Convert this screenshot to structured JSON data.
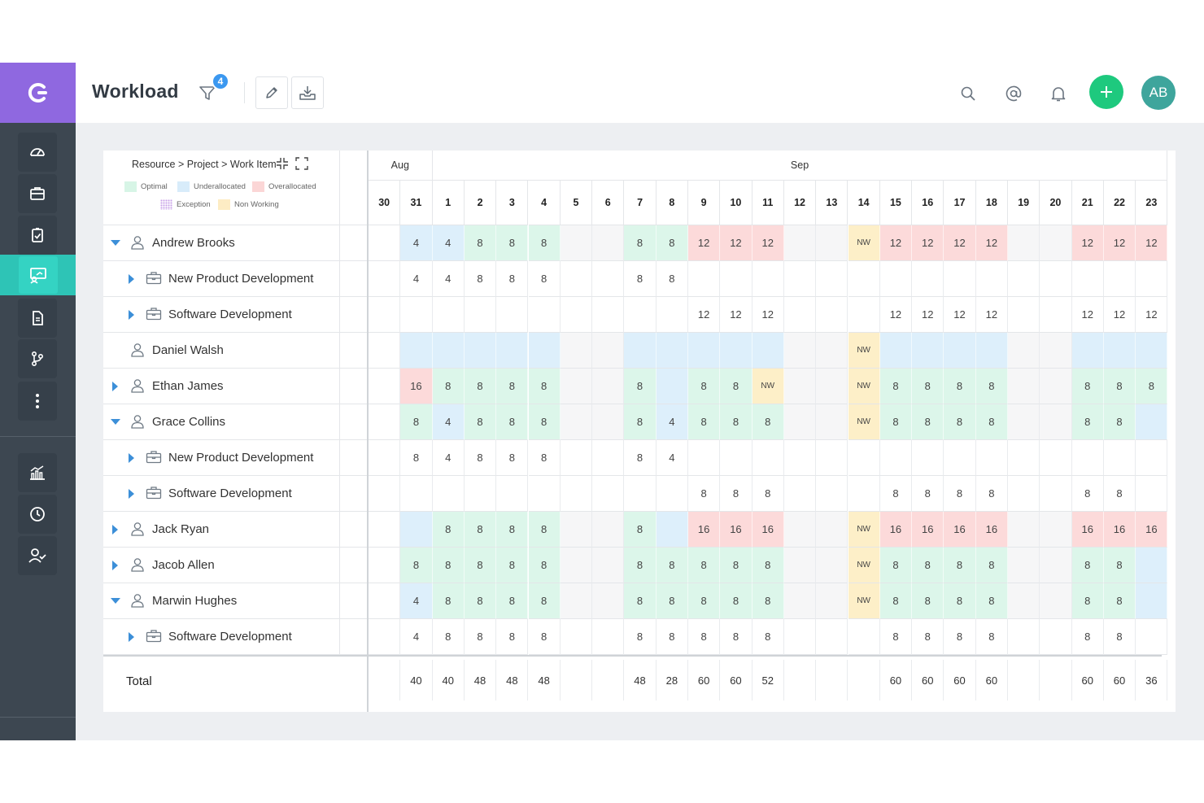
{
  "header": {
    "title": "Workload",
    "filter_count": "4",
    "avatar_initials": "AB"
  },
  "panel": {
    "breadcrumb": "Resource > Project > Work Item",
    "legend": [
      {
        "label": "Optimal",
        "color": "#d7f5e6"
      },
      {
        "label": "Underallocated",
        "color": "#d8ecfa"
      },
      {
        "label": "Overallocated",
        "color": "#fbd6d6"
      },
      {
        "label": "Exception",
        "color": "pattern"
      },
      {
        "label": "Non Working",
        "color": "#fdecc4"
      }
    ],
    "months": [
      {
        "label": "Aug",
        "start": 0,
        "span": 2
      },
      {
        "label": "Sep",
        "start": 2,
        "span": 23
      }
    ],
    "days": [
      "30",
      "31",
      "1",
      "2",
      "3",
      "4",
      "5",
      "6",
      "7",
      "8",
      "9",
      "10",
      "11",
      "12",
      "13",
      "14",
      "15",
      "16",
      "17",
      "18",
      "19",
      "20",
      "21",
      "22",
      "23"
    ],
    "total_label": "Total"
  },
  "colors": {
    "optimal": "#dcf6ea",
    "under": "#ddeffb",
    "over": "#fcdada",
    "nonworking": "#fdefc8",
    "weekend": "#f6f6f7"
  },
  "rows": [
    {
      "name": "Andrew Brooks",
      "level": 0,
      "caret": "down",
      "cells": [
        "",
        "4",
        "4",
        "8",
        "8",
        "8",
        "",
        "",
        "8",
        "8",
        "12",
        "12",
        "12",
        "",
        "",
        "NW",
        "12",
        "12",
        "12",
        "12",
        "",
        "",
        "12",
        "12",
        "12"
      ],
      "states": [
        "",
        "u",
        "u",
        "o",
        "o",
        "o",
        "w",
        "w",
        "o",
        "o",
        "x",
        "x",
        "x",
        "w",
        "w",
        "n",
        "x",
        "x",
        "x",
        "x",
        "w",
        "w",
        "x",
        "x",
        "x"
      ]
    },
    {
      "name": "New Product Development",
      "level": 1,
      "caret": "right",
      "cells": [
        "",
        "4",
        "4",
        "8",
        "8",
        "8",
        "",
        "",
        "8",
        "8",
        "",
        "",
        "",
        "",
        "",
        "",
        "",
        "",
        "",
        "",
        "",
        "",
        "",
        "",
        ""
      ],
      "states": [
        "",
        "",
        "",
        "",
        "",
        "",
        "",
        "",
        "",
        "",
        "",
        "",
        "",
        "",
        "",
        "",
        "",
        "",
        "",
        "",
        "",
        "",
        "",
        "",
        ""
      ]
    },
    {
      "name": "Software Development",
      "level": 1,
      "caret": "right",
      "cells": [
        "",
        "",
        "",
        "",
        "",
        "",
        "",
        "",
        "",
        "",
        "12",
        "12",
        "12",
        "",
        "",
        "",
        "12",
        "12",
        "12",
        "12",
        "",
        "",
        "12",
        "12",
        "12"
      ],
      "states": [
        "",
        "",
        "",
        "",
        "",
        "",
        "",
        "",
        "",
        "",
        "",
        "",
        "",
        "",
        "",
        "",
        "",
        "",
        "",
        "",
        "",
        "",
        "",
        "",
        ""
      ]
    },
    {
      "name": "Daniel Walsh",
      "level": 0,
      "caret": "none",
      "cells": [
        "",
        "",
        "",
        "",
        "",
        "",
        "",
        "",
        "",
        "",
        "",
        "",
        "",
        "",
        "",
        "NW",
        "",
        "",
        "",
        "",
        "",
        "",
        "",
        "",
        ""
      ],
      "states": [
        "",
        "u",
        "u",
        "u",
        "u",
        "u",
        "w",
        "w",
        "u",
        "u",
        "u",
        "u",
        "u",
        "w",
        "w",
        "n",
        "u",
        "u",
        "u",
        "u",
        "w",
        "w",
        "u",
        "u",
        "u"
      ]
    },
    {
      "name": "Ethan James",
      "level": 0,
      "caret": "right",
      "cells": [
        "",
        "16",
        "8",
        "8",
        "8",
        "8",
        "",
        "",
        "8",
        "",
        "8",
        "8",
        "NW",
        "",
        "",
        "NW",
        "8",
        "8",
        "8",
        "8",
        "",
        "",
        "8",
        "8",
        "8"
      ],
      "states": [
        "",
        "x",
        "o",
        "o",
        "o",
        "o",
        "w",
        "w",
        "o",
        "u",
        "o",
        "o",
        "n",
        "w",
        "w",
        "n",
        "o",
        "o",
        "o",
        "o",
        "w",
        "w",
        "o",
        "o",
        "o"
      ]
    },
    {
      "name": "Grace Collins",
      "level": 0,
      "caret": "down",
      "cells": [
        "",
        "8",
        "4",
        "8",
        "8",
        "8",
        "",
        "",
        "8",
        "4",
        "8",
        "8",
        "8",
        "",
        "",
        "NW",
        "8",
        "8",
        "8",
        "8",
        "",
        "",
        "8",
        "8",
        ""
      ],
      "states": [
        "",
        "o",
        "u",
        "o",
        "o",
        "o",
        "w",
        "w",
        "o",
        "u",
        "o",
        "o",
        "o",
        "w",
        "w",
        "n",
        "o",
        "o",
        "o",
        "o",
        "w",
        "w",
        "o",
        "o",
        "u"
      ]
    },
    {
      "name": "New Product Development",
      "level": 1,
      "caret": "right",
      "cells": [
        "",
        "8",
        "4",
        "8",
        "8",
        "8",
        "",
        "",
        "8",
        "4",
        "",
        "",
        "",
        "",
        "",
        "",
        "",
        "",
        "",
        "",
        "",
        "",
        "",
        "",
        ""
      ],
      "states": [
        "",
        "",
        "",
        "",
        "",
        "",
        "",
        "",
        "",
        "",
        "",
        "",
        "",
        "",
        "",
        "",
        "",
        "",
        "",
        "",
        "",
        "",
        "",
        "",
        ""
      ]
    },
    {
      "name": "Software Development",
      "level": 1,
      "caret": "right",
      "cells": [
        "",
        "",
        "",
        "",
        "",
        "",
        "",
        "",
        "",
        "",
        "8",
        "8",
        "8",
        "",
        "",
        "",
        "8",
        "8",
        "8",
        "8",
        "",
        "",
        "8",
        "8",
        ""
      ],
      "states": [
        "",
        "",
        "",
        "",
        "",
        "",
        "",
        "",
        "",
        "",
        "",
        "",
        "",
        "",
        "",
        "",
        "",
        "",
        "",
        "",
        "",
        "",
        "",
        "",
        ""
      ]
    },
    {
      "name": "Jack Ryan",
      "level": 0,
      "caret": "right",
      "cells": [
        "",
        "",
        "8",
        "8",
        "8",
        "8",
        "",
        "",
        "8",
        "",
        "16",
        "16",
        "16",
        "",
        "",
        "NW",
        "16",
        "16",
        "16",
        "16",
        "",
        "",
        "16",
        "16",
        "16"
      ],
      "states": [
        "",
        "u",
        "o",
        "o",
        "o",
        "o",
        "w",
        "w",
        "o",
        "u",
        "x",
        "x",
        "x",
        "w",
        "w",
        "n",
        "x",
        "x",
        "x",
        "x",
        "w",
        "w",
        "x",
        "x",
        "x"
      ]
    },
    {
      "name": "Jacob Allen",
      "level": 0,
      "caret": "right",
      "cells": [
        "",
        "8",
        "8",
        "8",
        "8",
        "8",
        "",
        "",
        "8",
        "8",
        "8",
        "8",
        "8",
        "",
        "",
        "NW",
        "8",
        "8",
        "8",
        "8",
        "",
        "",
        "8",
        "8",
        ""
      ],
      "states": [
        "",
        "o",
        "o",
        "o",
        "o",
        "o",
        "w",
        "w",
        "o",
        "o",
        "o",
        "o",
        "o",
        "w",
        "w",
        "n",
        "o",
        "o",
        "o",
        "o",
        "w",
        "w",
        "o",
        "o",
        "u"
      ]
    },
    {
      "name": "Marwin Hughes",
      "level": 0,
      "caret": "down",
      "cells": [
        "",
        "4",
        "8",
        "8",
        "8",
        "8",
        "",
        "",
        "8",
        "8",
        "8",
        "8",
        "8",
        "",
        "",
        "NW",
        "8",
        "8",
        "8",
        "8",
        "",
        "",
        "8",
        "8",
        ""
      ],
      "states": [
        "",
        "u",
        "o",
        "o",
        "o",
        "o",
        "w",
        "w",
        "o",
        "o",
        "o",
        "o",
        "o",
        "w",
        "w",
        "n",
        "o",
        "o",
        "o",
        "o",
        "w",
        "w",
        "o",
        "o",
        "u"
      ]
    },
    {
      "name": "Software Development",
      "level": 1,
      "caret": "right",
      "cells": [
        "",
        "4",
        "8",
        "8",
        "8",
        "8",
        "",
        "",
        "8",
        "8",
        "8",
        "8",
        "8",
        "",
        "",
        "",
        "8",
        "8",
        "8",
        "8",
        "",
        "",
        "8",
        "8",
        ""
      ],
      "states": [
        "",
        "",
        "",
        "",
        "",
        "",
        "",
        "",
        "",
        "",
        "",
        "",
        "",
        "",
        "",
        "",
        "",
        "",
        "",
        "",
        "",
        "",
        "",
        "",
        ""
      ]
    }
  ],
  "totals": [
    "",
    "40",
    "40",
    "48",
    "48",
    "48",
    "",
    "",
    "48",
    "28",
    "60",
    "60",
    "52",
    "",
    "",
    "",
    "60",
    "60",
    "60",
    "60",
    "",
    "",
    "60",
    "60",
    "36"
  ]
}
